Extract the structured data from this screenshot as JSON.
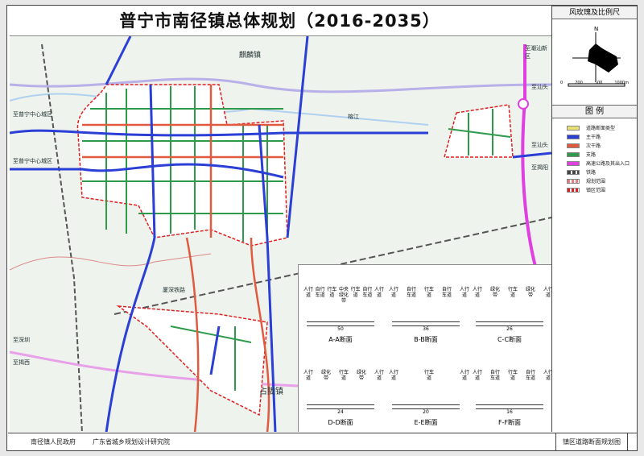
{
  "title": "普宁市南径镇总体规划（2016-2035）",
  "side": {
    "rose_title": "风玫瑰及比例尺",
    "north": "N",
    "scale_ticks": [
      "0",
      "200",
      "500",
      "1000m"
    ],
    "legend_title": "图  例",
    "legend": [
      {
        "label": "道路断面类型",
        "color": "#e8e070",
        "icon": "badge"
      },
      {
        "label": "主干路",
        "color": "#2b3fd6",
        "icon": "line"
      },
      {
        "label": "次干路",
        "color": "#e05a40",
        "icon": "line"
      },
      {
        "label": "支路",
        "color": "#2e9a4a",
        "icon": "line"
      },
      {
        "label": "高速公路及其出入口",
        "color": "#e040e0",
        "icon": "line"
      },
      {
        "label": "铁路",
        "color": "#444444",
        "icon": "dash"
      },
      {
        "label": "规划范围",
        "color": "#e08080",
        "icon": "dash"
      },
      {
        "label": "镇区范围",
        "color": "#e02020",
        "icon": "dash"
      }
    ]
  },
  "map": {
    "labels": [
      "麒麟镇",
      "占陇镇",
      "至普宁中心城区",
      "至普宁中心城区",
      "厦深铁路",
      "至汕头",
      "至汕头",
      "至潮汕新区",
      "至揭阳",
      "至深圳",
      "至揭西",
      "榕江"
    ]
  },
  "sections": [
    {
      "name": "A-A断面",
      "total": "50",
      "parts": [
        "人行道",
        "自行车道",
        "行车道",
        "中央绿化带",
        "行车道",
        "自行车道",
        "人行道"
      ]
    },
    {
      "name": "B-B断面",
      "total": "36",
      "parts": [
        "人行道",
        "自行车道",
        "行车道",
        "自行车道",
        "人行道"
      ]
    },
    {
      "name": "C-C断面",
      "total": "26",
      "parts": [
        "人行道",
        "绿化带",
        "行车道",
        "绿化带",
        "人行道"
      ]
    },
    {
      "name": "D-D断面",
      "total": "24",
      "parts": [
        "人行道",
        "绿化带",
        "行车道",
        "绿化带",
        "人行道"
      ]
    },
    {
      "name": "E-E断面",
      "total": "20",
      "parts": [
        "人行道",
        "行车道",
        "人行道"
      ]
    },
    {
      "name": "F-F断面",
      "total": "16",
      "parts": [
        "人行道",
        "自行车道",
        "行车道",
        "自行车道",
        "人行道"
      ]
    }
  ],
  "footer": {
    "gov": "南径镇人民政府",
    "institute": "广东省城乡规划设计研究院",
    "drawing": "镇区道路断面规划图"
  }
}
